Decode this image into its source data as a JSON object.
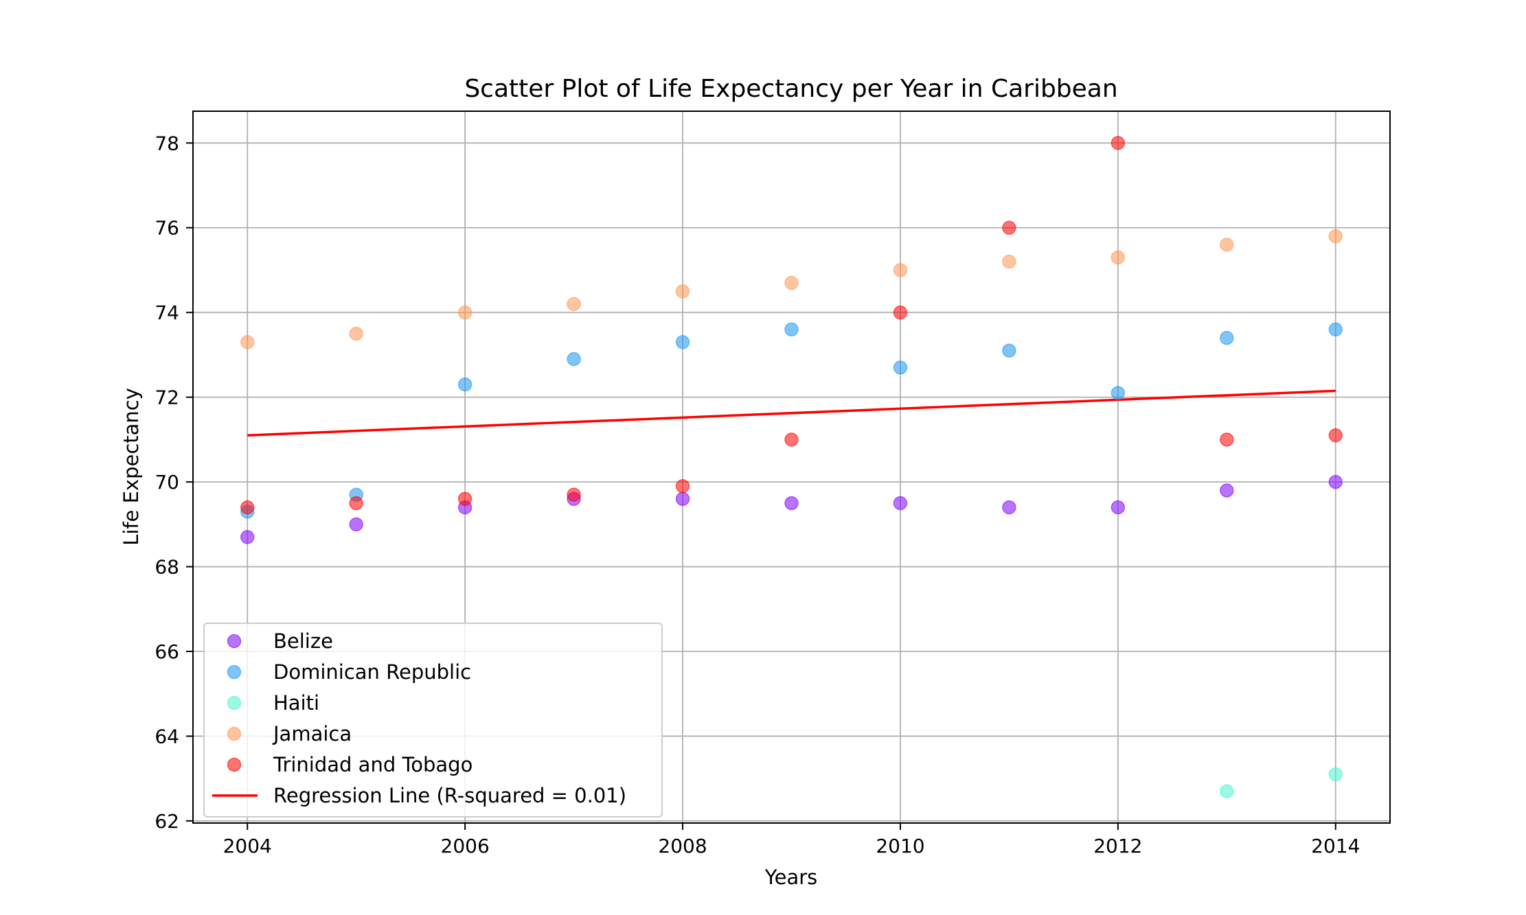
{
  "chart_data": {
    "type": "scatter",
    "title": "Scatter Plot of Life Expectancy per Year in Caribbean",
    "xlabel": "Years",
    "ylabel": "Life Expectancy",
    "xlim": [
      2003.5,
      2014.5
    ],
    "ylim": [
      61.95,
      78.75
    ],
    "xticks": [
      2004,
      2006,
      2008,
      2010,
      2012,
      2014
    ],
    "yticks": [
      62,
      64,
      66,
      68,
      70,
      72,
      74,
      76,
      78
    ],
    "grid": true,
    "legend_position": "lower-left",
    "series": [
      {
        "name": "Belize",
        "color": "#8000ff",
        "points": [
          [
            2004,
            68.7
          ],
          [
            2005,
            69.0
          ],
          [
            2006,
            69.4
          ],
          [
            2007,
            69.6
          ],
          [
            2008,
            69.6
          ],
          [
            2009,
            69.5
          ],
          [
            2010,
            69.5
          ],
          [
            2011,
            69.4
          ],
          [
            2012,
            69.4
          ],
          [
            2013,
            69.8
          ],
          [
            2014,
            70.0
          ]
        ]
      },
      {
        "name": "Dominican Republic",
        "color": "#1996f3",
        "points": [
          [
            2004,
            69.3
          ],
          [
            2005,
            69.7
          ],
          [
            2006,
            72.3
          ],
          [
            2007,
            72.9
          ],
          [
            2008,
            73.3
          ],
          [
            2009,
            73.6
          ],
          [
            2010,
            72.7
          ],
          [
            2011,
            73.1
          ],
          [
            2012,
            72.1
          ],
          [
            2013,
            73.4
          ],
          [
            2014,
            73.6
          ]
        ]
      },
      {
        "name": "Haiti",
        "color": "#4df3ce",
        "points": [
          [
            2013,
            62.7
          ],
          [
            2014,
            63.1
          ]
        ]
      },
      {
        "name": "Jamaica",
        "color": "#ff964f",
        "points": [
          [
            2004,
            73.3
          ],
          [
            2005,
            73.5
          ],
          [
            2006,
            74.0
          ],
          [
            2007,
            74.2
          ],
          [
            2008,
            74.5
          ],
          [
            2009,
            74.7
          ],
          [
            2010,
            75.0
          ],
          [
            2011,
            75.2
          ],
          [
            2012,
            75.3
          ],
          [
            2013,
            75.6
          ],
          [
            2014,
            75.8
          ]
        ]
      },
      {
        "name": "Trinidad and Tobago",
        "color": "#ff0000",
        "points": [
          [
            2004,
            69.4
          ],
          [
            2005,
            69.5
          ],
          [
            2006,
            69.6
          ],
          [
            2007,
            69.7
          ],
          [
            2008,
            69.9
          ],
          [
            2009,
            71.0
          ],
          [
            2010,
            74.0
          ],
          [
            2011,
            76.0
          ],
          [
            2012,
            78.0
          ],
          [
            2013,
            71.0
          ],
          [
            2014,
            71.1
          ]
        ]
      }
    ],
    "regression": {
      "name": "Regression Line (R-squared = 0.01)",
      "color": "#ff0000",
      "x": [
        2004,
        2014
      ],
      "y": [
        71.1,
        72.15
      ]
    }
  }
}
